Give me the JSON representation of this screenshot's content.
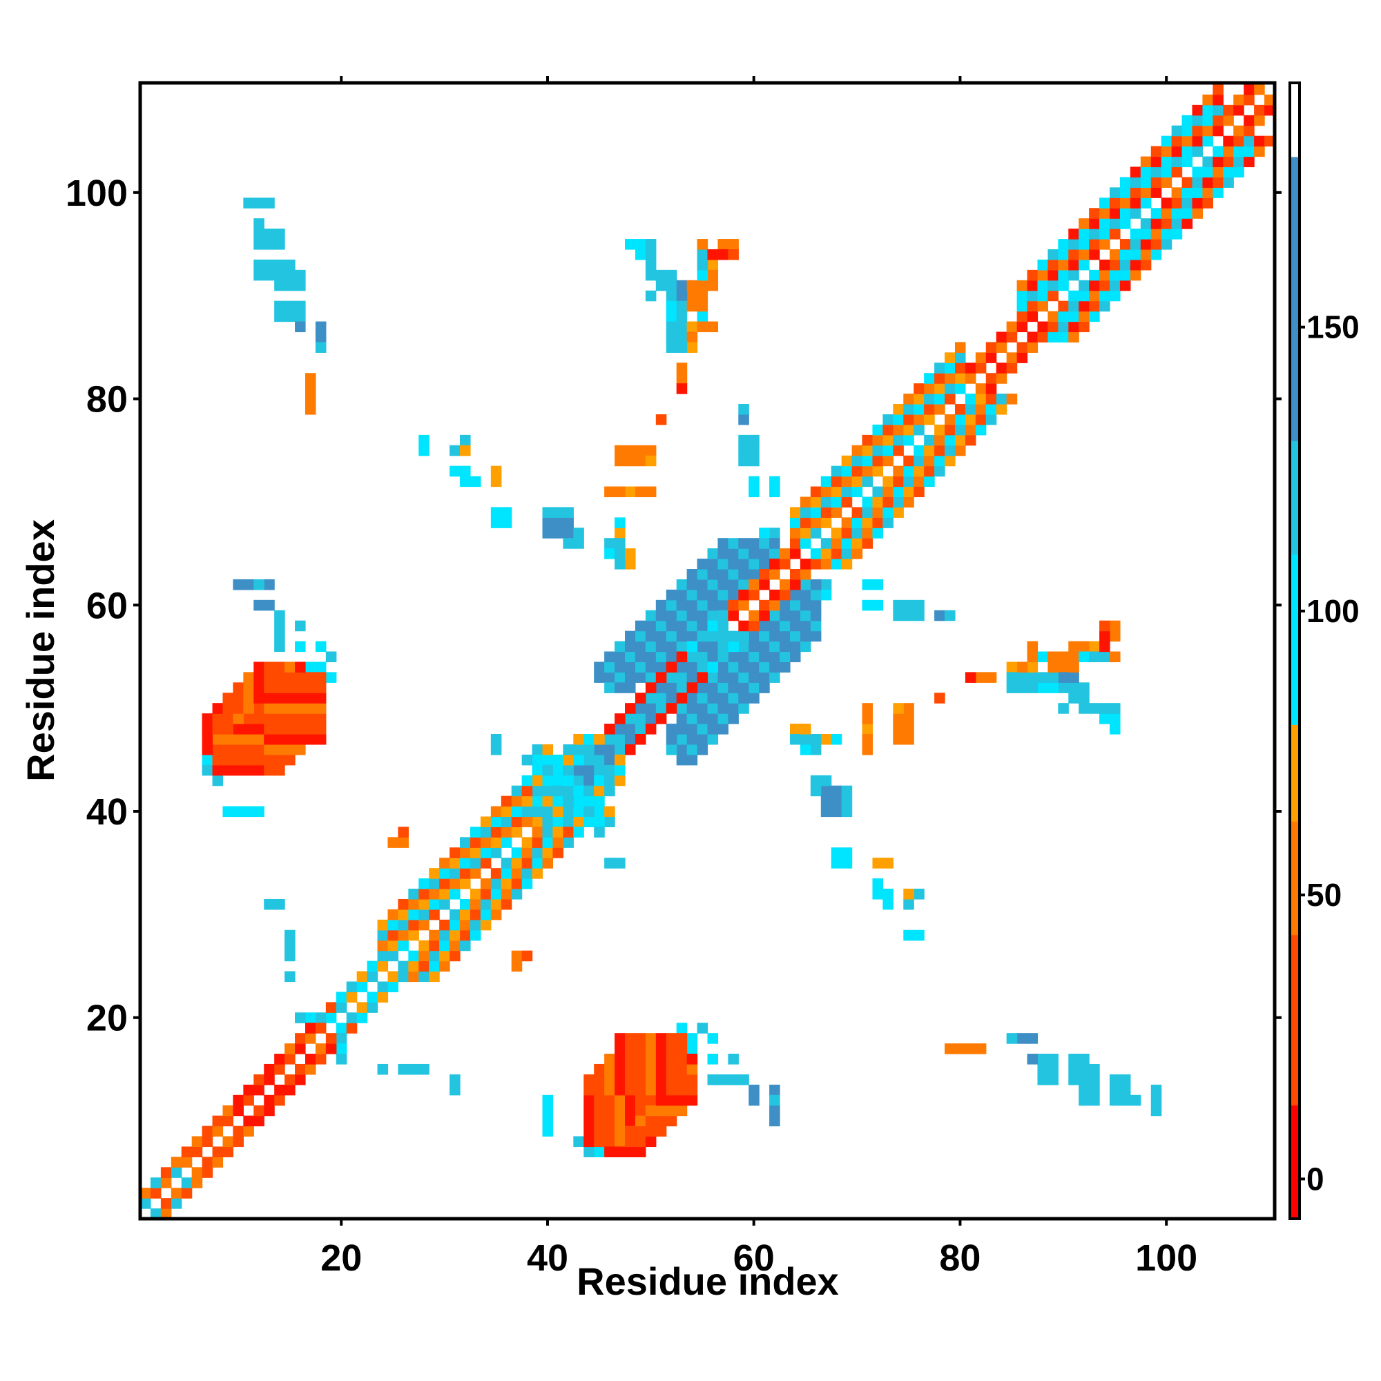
{
  "chart_data": {
    "type": "heatmap",
    "title": "",
    "xlabel": "Residue index",
    "ylabel": "Residue index",
    "xlim": [
      1,
      110
    ],
    "ylim": [
      1,
      110
    ],
    "x_ticks": [
      20,
      40,
      60,
      80,
      100
    ],
    "y_ticks": [
      20,
      40,
      60,
      80,
      100
    ],
    "colorbar": {
      "ticks": [
        0,
        50,
        100,
        150
      ],
      "range": [
        -7,
        193
      ],
      "stops": [
        {
          "from": -7,
          "to": 13,
          "color": "#ff0000"
        },
        {
          "from": 13,
          "to": 43,
          "color": "#ff4a00"
        },
        {
          "from": 43,
          "to": 63,
          "color": "#ff7a00"
        },
        {
          "from": 63,
          "to": 80,
          "color": "#ffa000"
        },
        {
          "from": 80,
          "to": 110,
          "color": "#00e5ff"
        },
        {
          "from": 110,
          "to": 130,
          "color": "#22c4e0"
        },
        {
          "from": 130,
          "to": 180,
          "color": "#3d8fc6"
        },
        {
          "from": 180,
          "to": 193,
          "color": "#ffffff"
        }
      ]
    },
    "palette": {
      "R": "#ff1400",
      "r": "#ff4a00",
      "o": "#ff7a00",
      "y": "#ffa000",
      "c": "#00e5ff",
      "t": "#22c4e0",
      "b": "#3d8fc6"
    },
    "legend_values": {
      "R": 0,
      "r": 25,
      "o": 50,
      "y": 70,
      "c": 95,
      "t": 120,
      "b": 150
    },
    "diagonal_segments": [
      {
        "start": 1,
        "end": 4,
        "pattern": "tro"
      },
      {
        "start": 4,
        "end": 9,
        "pattern": "ror"
      },
      {
        "start": 9,
        "end": 14,
        "pattern": "RrR"
      },
      {
        "start": 14,
        "end": 19,
        "pattern": "Ror"
      },
      {
        "start": 19,
        "end": 24,
        "pattern": "cty"
      },
      {
        "start": 24,
        "end": 40,
        "pattern": "ortcy"
      },
      {
        "start": 40,
        "end": 45,
        "pattern": "ctr"
      },
      {
        "start": 45,
        "end": 53,
        "pattern": "RR"
      },
      {
        "start": 53,
        "end": 57,
        "pattern": "ct"
      },
      {
        "start": 57,
        "end": 64,
        "pattern": "Ror"
      },
      {
        "start": 64,
        "end": 80,
        "pattern": "orcty"
      },
      {
        "start": 80,
        "end": 86,
        "pattern": "rRo"
      },
      {
        "start": 86,
        "end": 105,
        "pattern": "orctcR"
      },
      {
        "start": 105,
        "end": 110,
        "pattern": "oRr"
      }
    ],
    "blocks": [
      {
        "x": [
          8,
          18
        ],
        "y": [
          44,
          53
        ],
        "band": [
          -6,
          3
        ],
        "pattern": "Rrro"
      },
      {
        "x": [
          44,
          54
        ],
        "y": [
          7,
          18
        ],
        "band": [
          -6,
          3
        ],
        "pattern": "Rrro"
      },
      {
        "x": [
          43,
          57
        ],
        "y": [
          43,
          57
        ],
        "band": [
          -1,
          1
        ],
        "anti": true,
        "pattern": "bt"
      },
      {
        "x": [
          53,
          66
        ],
        "y": [
          45,
          62
        ],
        "band": [
          -3,
          3
        ],
        "anti": true,
        "pattern": "bbt"
      },
      {
        "x": [
          46,
          56
        ],
        "y": [
          52,
          63
        ],
        "band": [
          -3,
          3
        ],
        "anti": true,
        "pattern": "bbt"
      },
      {
        "x": [
          39,
          47
        ],
        "y": [
          39,
          47
        ],
        "band": [
          -4,
          4
        ],
        "anti": true,
        "pattern": "tcty"
      }
    ],
    "cells": [
      [
        12,
        99,
        "t"
      ],
      [
        13,
        99,
        "t"
      ],
      [
        12,
        96,
        "t"
      ],
      [
        12,
        95,
        "t"
      ],
      [
        13,
        95,
        "t"
      ],
      [
        14,
        95,
        "t"
      ],
      [
        12,
        92,
        "t"
      ],
      [
        13,
        92,
        "t"
      ],
      [
        14,
        92,
        "t"
      ],
      [
        15,
        92,
        "t"
      ],
      [
        14,
        91,
        "t"
      ],
      [
        15,
        91,
        "t"
      ],
      [
        16,
        91,
        "t"
      ],
      [
        14,
        88,
        "t"
      ],
      [
        15,
        88,
        "t"
      ],
      [
        16,
        88,
        "t"
      ],
      [
        16,
        87,
        "b"
      ],
      [
        18,
        86,
        "b"
      ],
      [
        18,
        85,
        "t"
      ],
      [
        17,
        81,
        "o"
      ],
      [
        17,
        80,
        "o"
      ],
      [
        17,
        79,
        "o"
      ],
      [
        28,
        76,
        "c"
      ],
      [
        28,
        75,
        "c"
      ],
      [
        32,
        76,
        "t"
      ],
      [
        31,
        75,
        "t"
      ],
      [
        32,
        75,
        "y"
      ],
      [
        32,
        72,
        "c"
      ],
      [
        33,
        72,
        "c"
      ],
      [
        35,
        72,
        "y"
      ],
      [
        35,
        68,
        "c"
      ],
      [
        36,
        68,
        "c"
      ],
      [
        40,
        68,
        "b"
      ],
      [
        41,
        68,
        "b"
      ],
      [
        40,
        67,
        "b"
      ],
      [
        41,
        67,
        "b"
      ],
      [
        42,
        67,
        "b"
      ],
      [
        42,
        66,
        "t"
      ],
      [
        43,
        66,
        "t"
      ],
      [
        47,
        67,
        "y"
      ],
      [
        46,
        66,
        "t"
      ],
      [
        47,
        66,
        "t"
      ],
      [
        46,
        65,
        "c"
      ],
      [
        47,
        65,
        "t"
      ],
      [
        48,
        64,
        "y"
      ],
      [
        47,
        64,
        "t"
      ],
      [
        49,
        75,
        "o"
      ],
      [
        50,
        75,
        "o"
      ],
      [
        49,
        74,
        "o"
      ],
      [
        50,
        74,
        "y"
      ],
      [
        48,
        71,
        "y"
      ],
      [
        49,
        71,
        "o"
      ],
      [
        50,
        71,
        "o"
      ],
      [
        51,
        78,
        "r"
      ],
      [
        53,
        83,
        "o"
      ],
      [
        53,
        82,
        "o"
      ],
      [
        53,
        81,
        "R"
      ],
      [
        48,
        95,
        "c"
      ],
      [
        49,
        95,
        "c"
      ],
      [
        49,
        94,
        "c"
      ],
      [
        50,
        92,
        "t"
      ],
      [
        51,
        92,
        "t"
      ],
      [
        52,
        92,
        "t"
      ],
      [
        51,
        91,
        "t"
      ],
      [
        52,
        91,
        "t"
      ],
      [
        53,
        91,
        "b"
      ],
      [
        54,
        91,
        "o"
      ],
      [
        55,
        91,
        "o"
      ],
      [
        56,
        91,
        "o"
      ],
      [
        54,
        90,
        "o"
      ],
      [
        55,
        90,
        "o"
      ],
      [
        52,
        90,
        "t"
      ],
      [
        53,
        90,
        "b"
      ],
      [
        52,
        89,
        "c"
      ],
      [
        53,
        89,
        "t"
      ],
      [
        52,
        88,
        "c"
      ],
      [
        53,
        88,
        "t"
      ],
      [
        55,
        88,
        "c"
      ],
      [
        52,
        87,
        "t"
      ],
      [
        53,
        87,
        "t"
      ],
      [
        54,
        87,
        "y"
      ],
      [
        55,
        87,
        "o"
      ],
      [
        56,
        87,
        "o"
      ],
      [
        52,
        86,
        "t"
      ],
      [
        53,
        86,
        "t"
      ],
      [
        54,
        86,
        "o"
      ],
      [
        57,
        95,
        "o"
      ],
      [
        58,
        95,
        "o"
      ],
      [
        57,
        94,
        "R"
      ],
      [
        58,
        94,
        "r"
      ],
      [
        56,
        93,
        "y"
      ],
      [
        56,
        92,
        "o"
      ],
      [
        59,
        78,
        "b"
      ],
      [
        59,
        75,
        "t"
      ],
      [
        60,
        75,
        "t"
      ],
      [
        59,
        74,
        "t"
      ],
      [
        60,
        74,
        "t"
      ],
      [
        60,
        71,
        "c"
      ],
      [
        62,
        71,
        "c"
      ],
      [
        11,
        62,
        "b"
      ],
      [
        13,
        62,
        "b"
      ],
      [
        13,
        60,
        "b"
      ],
      [
        14,
        57,
        "t"
      ],
      [
        14,
        56,
        "t"
      ],
      [
        16,
        56,
        "c"
      ],
      [
        17,
        54,
        "c"
      ],
      [
        18,
        54,
        "c"
      ],
      [
        19,
        53,
        "c"
      ],
      [
        7,
        45,
        "c"
      ],
      [
        7,
        44,
        "t"
      ],
      [
        10,
        40,
        "c"
      ],
      [
        12,
        40,
        "c"
      ],
      [
        35,
        47,
        "t"
      ],
      [
        39,
        46,
        "t"
      ],
      [
        39,
        45,
        "c"
      ],
      [
        40,
        45,
        "c"
      ],
      [
        41,
        44,
        "c"
      ],
      [
        41,
        43,
        "c"
      ],
      [
        45,
        40,
        "y"
      ],
      [
        46,
        40,
        "y"
      ],
      [
        44,
        39,
        "c"
      ],
      [
        45,
        39,
        "c"
      ],
      [
        45,
        38,
        "t"
      ],
      [
        46,
        35,
        "t"
      ],
      [
        14,
        31,
        "t"
      ],
      [
        15,
        27,
        "t"
      ],
      [
        15,
        26,
        "t"
      ],
      [
        15,
        24,
        "t"
      ],
      [
        67,
        62,
        "t"
      ],
      [
        72,
        62,
        "c"
      ],
      [
        67,
        61,
        "c"
      ],
      [
        72,
        60,
        "c"
      ],
      [
        75,
        60,
        "t"
      ],
      [
        76,
        60,
        "t"
      ],
      [
        75,
        59,
        "t"
      ],
      [
        76,
        59,
        "t"
      ],
      [
        79,
        59,
        "t"
      ],
      [
        64,
        48,
        "o"
      ],
      [
        65,
        48,
        "y"
      ],
      [
        64,
        47,
        "c"
      ],
      [
        65,
        47,
        "c"
      ],
      [
        67,
        47,
        "c"
      ],
      [
        68,
        47,
        "c"
      ],
      [
        71,
        48,
        "y"
      ],
      [
        71,
        47,
        "o"
      ],
      [
        71,
        46,
        "o"
      ],
      [
        74,
        48,
        "o"
      ],
      [
        75,
        48,
        "o"
      ],
      [
        74,
        47,
        "o"
      ],
      [
        75,
        47,
        "o"
      ],
      [
        67,
        43,
        "t"
      ],
      [
        67,
        42,
        "t"
      ],
      [
        68,
        42,
        "b"
      ],
      [
        69,
        42,
        "t"
      ],
      [
        68,
        41,
        "t"
      ],
      [
        69,
        41,
        "t"
      ],
      [
        68,
        40,
        "t"
      ],
      [
        69,
        40,
        "t"
      ],
      [
        69,
        36,
        "c"
      ],
      [
        69,
        35,
        "c"
      ],
      [
        73,
        35,
        "y"
      ],
      [
        73,
        32,
        "c"
      ],
      [
        73,
        31,
        "c"
      ],
      [
        75,
        32,
        "y"
      ],
      [
        76,
        32,
        "t"
      ],
      [
        75,
        31,
        "t"
      ],
      [
        75,
        28,
        "c"
      ],
      [
        76,
        28,
        "c"
      ],
      [
        78,
        51,
        "r"
      ],
      [
        81,
        53,
        "R"
      ],
      [
        82,
        53,
        "r"
      ],
      [
        83,
        53,
        "y"
      ],
      [
        85,
        54,
        "y"
      ],
      [
        85,
        53,
        "t"
      ],
      [
        86,
        53,
        "t"
      ],
      [
        85,
        52,
        "t"
      ],
      [
        86,
        52,
        "t"
      ],
      [
        87,
        52,
        "c"
      ],
      [
        88,
        52,
        "c"
      ],
      [
        89,
        52,
        "t"
      ],
      [
        87,
        55,
        "c"
      ],
      [
        89,
        55,
        "o"
      ],
      [
        90,
        55,
        "o"
      ],
      [
        89,
        54,
        "o"
      ],
      [
        90,
        54,
        "t"
      ],
      [
        90,
        53,
        "t"
      ],
      [
        91,
        52,
        "t"
      ],
      [
        90,
        50,
        "t"
      ],
      [
        91,
        56,
        "y"
      ],
      [
        91,
        55,
        "o"
      ],
      [
        92,
        55,
        "c"
      ],
      [
        93,
        55,
        "t"
      ],
      [
        94,
        55,
        "t"
      ],
      [
        95,
        55,
        "o"
      ],
      [
        94,
        57,
        "R"
      ],
      [
        94,
        56,
        "R"
      ],
      [
        95,
        57,
        "o"
      ],
      [
        93,
        50,
        "t"
      ],
      [
        94,
        50,
        "t"
      ],
      [
        95,
        50,
        "t"
      ],
      [
        95,
        49,
        "t"
      ],
      [
        60,
        12,
        "b"
      ],
      [
        62,
        12,
        "t"
      ],
      [
        62,
        10,
        "b"
      ],
      [
        55,
        19,
        "t"
      ],
      [
        56,
        18,
        "c"
      ],
      [
        56,
        16,
        "t"
      ],
      [
        58,
        16,
        "t"
      ],
      [
        56,
        14,
        "t"
      ],
      [
        57,
        14,
        "t"
      ],
      [
        58,
        14,
        "t"
      ],
      [
        59,
        14,
        "t"
      ],
      [
        40,
        11,
        "c"
      ],
      [
        40,
        9,
        "c"
      ],
      [
        43,
        8,
        "t"
      ],
      [
        20,
        19,
        "c"
      ],
      [
        20,
        18,
        "t"
      ],
      [
        20,
        17,
        "c"
      ],
      [
        20,
        16,
        "t"
      ],
      [
        24,
        15,
        "t"
      ],
      [
        27,
        15,
        "t"
      ],
      [
        28,
        15,
        "t"
      ],
      [
        31,
        13,
        "t"
      ],
      [
        80,
        17,
        "o"
      ],
      [
        81,
        17,
        "o"
      ],
      [
        82,
        17,
        "o"
      ],
      [
        86,
        18,
        "t"
      ],
      [
        87,
        18,
        "b"
      ],
      [
        88,
        16,
        "b"
      ],
      [
        89,
        16,
        "t"
      ],
      [
        89,
        15,
        "t"
      ],
      [
        89,
        14,
        "t"
      ],
      [
        92,
        16,
        "t"
      ],
      [
        92,
        15,
        "c"
      ],
      [
        93,
        15,
        "t"
      ],
      [
        93,
        14,
        "t"
      ],
      [
        93,
        13,
        "t"
      ],
      [
        93,
        12,
        "t"
      ],
      [
        96,
        14,
        "t"
      ],
      [
        96,
        13,
        "t"
      ],
      [
        96,
        12,
        "t"
      ],
      [
        97,
        12,
        "t"
      ],
      [
        99,
        12,
        "t"
      ],
      [
        99,
        11,
        "t"
      ],
      [
        37,
        25,
        "o"
      ],
      [
        37,
        26,
        "o"
      ],
      [
        38,
        26,
        "r"
      ]
    ]
  }
}
